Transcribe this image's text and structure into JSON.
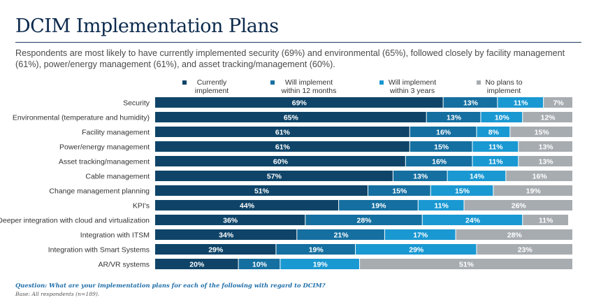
{
  "title": "DCIM Implementation Plans",
  "subtitle": "Respondents are most likely to have currently implemented security (69%) and environmental (65%), followed closely by facility management (61%), power/energy management (61%), and asset tracking/management (60%).",
  "footnote": "Question: What are your implementation plans for each of the following with regard to DCIM?",
  "base_note": "Base: All respondents (n=189).",
  "colors": {
    "currently": "#0f4468",
    "within12": "#156fa0",
    "within3y": "#1a98d2",
    "noplans": "#a7acb1",
    "title": "#0c2a4c"
  },
  "chart_data": {
    "type": "bar",
    "orientation": "horizontal",
    "stacked": true,
    "percent_stacked": true,
    "xlim": [
      0,
      100
    ],
    "grid": false,
    "legend_position": "top",
    "categories": [
      "Security",
      "Environmental (temperature and humidity)",
      "Facility management",
      "Power/energy management",
      "Asset tracking/management",
      "Cable management",
      "Change management planning",
      "KPI's",
      "Deeper integration with cloud and virtualization",
      "Integration with ITSM",
      "Integration with Smart Systems",
      "AR/VR systems"
    ],
    "series": [
      {
        "name": "Currently\nimplement",
        "color": "#0f4468",
        "values": [
          69,
          65,
          61,
          61,
          60,
          57,
          51,
          44,
          36,
          34,
          29,
          20
        ]
      },
      {
        "name": "Will implement\nwithin 12 months",
        "color": "#156fa0",
        "values": [
          13,
          13,
          16,
          15,
          16,
          13,
          15,
          19,
          28,
          21,
          19,
          10
        ]
      },
      {
        "name": "Will implement\nwithin 3 years",
        "color": "#1a98d2",
        "values": [
          11,
          10,
          8,
          11,
          11,
          14,
          15,
          11,
          24,
          17,
          29,
          19
        ]
      },
      {
        "name": "No plans to\nimplement",
        "color": "#a7acb1",
        "values": [
          7,
          12,
          15,
          13,
          13,
          16,
          19,
          26,
          11,
          28,
          23,
          51
        ]
      }
    ]
  }
}
